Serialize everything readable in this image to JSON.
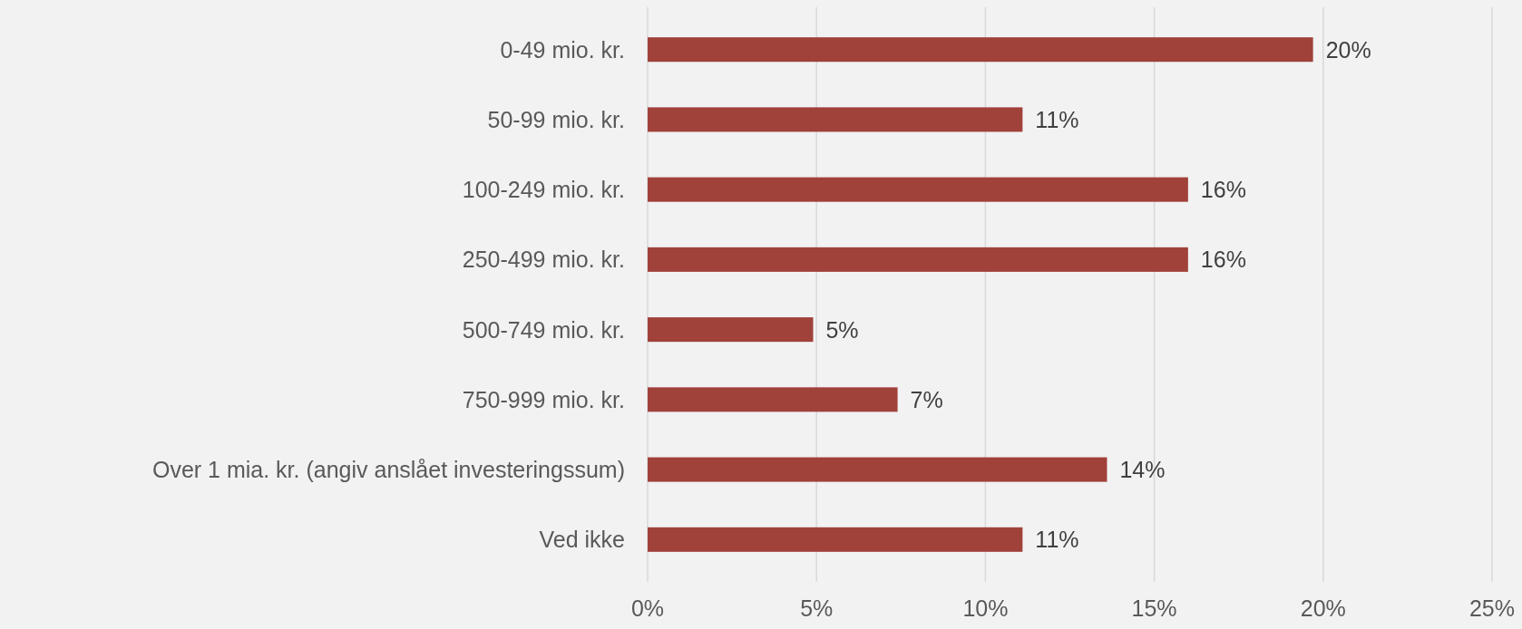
{
  "chart_data": {
    "type": "bar",
    "orientation": "horizontal",
    "categories": [
      "0-49 mio. kr.",
      "50-99 mio. kr.",
      "100-249 mio. kr.",
      "250-499 mio. kr.",
      "500-749 mio. kr.",
      "750-999 mio. kr.",
      "Over 1 mia. kr. (angiv anslået investeringssum)",
      "Ved ikke"
    ],
    "values": [
      19.7,
      11.1,
      16.0,
      16.0,
      4.9,
      7.4,
      13.6,
      11.1
    ],
    "value_labels": [
      "20%",
      "11%",
      "16%",
      "16%",
      "5%",
      "7%",
      "14%",
      "11%"
    ],
    "color": "#a0413a",
    "xlim": [
      0,
      25
    ],
    "xticks": [
      {
        "value": 0,
        "label": "0%"
      },
      {
        "value": 5,
        "label": "5%"
      },
      {
        "value": 10,
        "label": "10%"
      },
      {
        "value": 15,
        "label": "15%"
      },
      {
        "value": 20,
        "label": "20%"
      },
      {
        "value": 25,
        "label": "25%"
      }
    ],
    "grid": "x"
  }
}
